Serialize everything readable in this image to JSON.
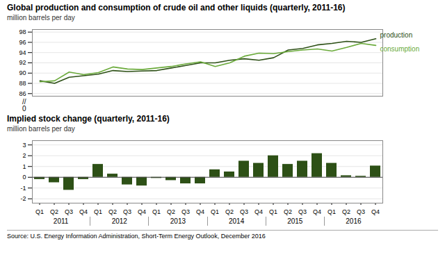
{
  "chart_data": [
    {
      "type": "line",
      "title": "Global production and consumption of crude oil and other liquids (quarterly, 2011-16)",
      "ylabel": "million barrels per day",
      "categories": [
        "Q1",
        "Q2",
        "Q3",
        "Q4",
        "Q1",
        "Q2",
        "Q3",
        "Q4",
        "Q1",
        "Q2",
        "Q3",
        "Q4",
        "Q1",
        "Q2",
        "Q3",
        "Q4",
        "Q1",
        "Q2",
        "Q3",
        "Q4",
        "Q1",
        "Q2",
        "Q3",
        "Q4"
      ],
      "series": [
        {
          "name": "production",
          "color": "#2d5016",
          "values": [
            88.5,
            88.0,
            89.2,
            89.5,
            89.8,
            90.5,
            90.3,
            90.4,
            90.5,
            91.0,
            91.5,
            92.0,
            92.0,
            92.5,
            92.8,
            92.5,
            93.0,
            94.5,
            94.8,
            95.5,
            95.8,
            96.2,
            96.0,
            96.7
          ]
        },
        {
          "name": "consumption",
          "color": "#6aaa3a",
          "values": [
            88.3,
            88.5,
            90.2,
            89.7,
            90.1,
            91.2,
            90.8,
            90.7,
            91.0,
            91.3,
            91.8,
            92.2,
            91.3,
            92.0,
            93.3,
            93.9,
            93.8,
            94.2,
            94.5,
            94.7,
            94.3,
            95.0,
            95.8,
            95.4
          ]
        }
      ],
      "ylim": [
        85.5,
        98.5
      ],
      "yticks": [
        86,
        88,
        90,
        92,
        94,
        96,
        98
      ],
      "grid": true,
      "tick_labels": "y",
      "annotations": [
        "//",
        "0"
      ]
    },
    {
      "type": "bar",
      "title": "Implied stock change (quarterly, 2011-16)",
      "ylabel": "million barrels per day",
      "categories": [
        "Q1",
        "Q2",
        "Q3",
        "Q4",
        "Q1",
        "Q2",
        "Q3",
        "Q4",
        "Q1",
        "Q2",
        "Q3",
        "Q4",
        "Q1",
        "Q2",
        "Q3",
        "Q4",
        "Q1",
        "Q2",
        "Q3",
        "Q4",
        "Q1",
        "Q2",
        "Q3",
        "Q4"
      ],
      "values": [
        -0.2,
        -0.5,
        -1.2,
        -0.2,
        1.2,
        0.3,
        -0.7,
        -0.8,
        -0.1,
        -0.3,
        -0.6,
        -0.6,
        0.7,
        0.5,
        1.5,
        1.3,
        2.0,
        1.2,
        1.5,
        2.2,
        1.3,
        0.15,
        0.1,
        1.05
      ],
      "color": "#2d5016",
      "ylim": [
        -2.4,
        3.4
      ],
      "yticks": [
        -2,
        -1,
        0,
        1,
        2,
        3
      ],
      "grid": true,
      "annotations": [
        "2011",
        "2012",
        "2013",
        "2014",
        "2015",
        "2016"
      ],
      "caption": "Source: U.S. Energy Information Administration, Short-Term Energy Outlook, December 2016"
    }
  ]
}
